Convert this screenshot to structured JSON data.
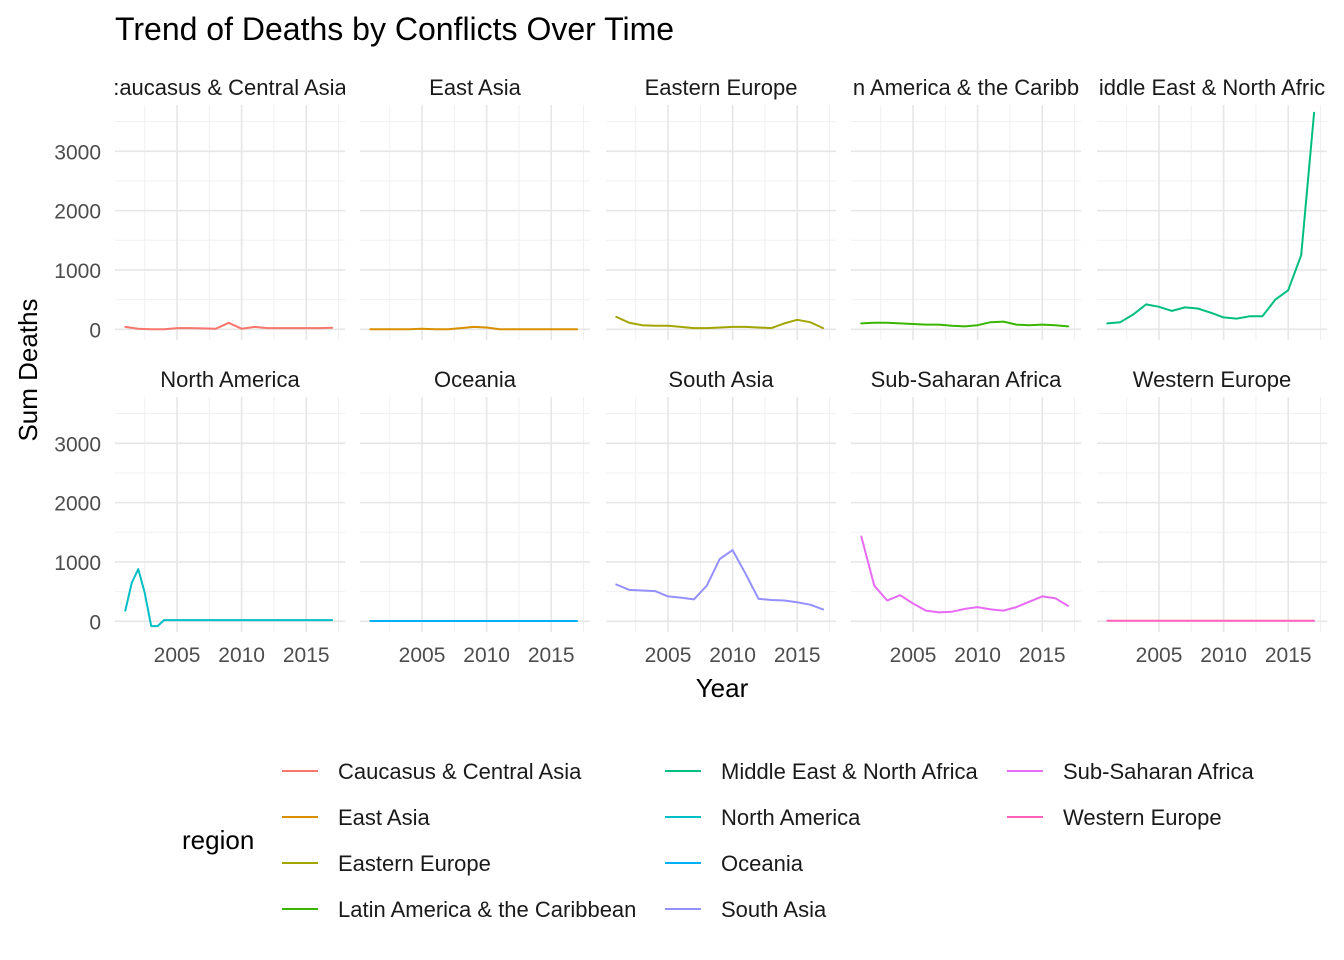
{
  "chart_data": {
    "type": "line",
    "title": "Trend of Deaths by Conflicts Over Time",
    "xlabel": "Year",
    "ylabel": "Sum Deaths",
    "xlim": [
      2000.2,
      2018.0
    ],
    "ylim": [
      -180,
      3780
    ],
    "x_ticks": [
      2005,
      2010,
      2015
    ],
    "y_ticks": [
      0,
      1000,
      2000,
      3000
    ],
    "grid": true,
    "legend": {
      "title": "region",
      "position": "bottom",
      "columns": 3
    },
    "panels": [
      {
        "label": "Caucasus & Central Asia",
        "display_label": ":aucasus & Central Asia",
        "color": "#F8766D",
        "x": [
          2001,
          2002,
          2003,
          2004,
          2005,
          2006,
          2007,
          2008,
          2008.5,
          2009,
          2009.5,
          2010,
          2011,
          2012,
          2013,
          2014,
          2015,
          2016,
          2017
        ],
        "y": [
          40,
          10,
          0,
          0,
          20,
          20,
          15,
          10,
          60,
          110,
          60,
          10,
          40,
          20,
          20,
          20,
          20,
          20,
          25
        ]
      },
      {
        "label": "East Asia",
        "display_label": "East Asia",
        "color": "#D89000",
        "x": [
          2001,
          2002,
          2003,
          2004,
          2005,
          2006,
          2007,
          2008,
          2009,
          2010,
          2011,
          2012,
          2013,
          2014,
          2015,
          2016,
          2017
        ],
        "y": [
          0,
          0,
          0,
          0,
          10,
          0,
          0,
          20,
          40,
          30,
          0,
          0,
          0,
          0,
          0,
          0,
          0
        ]
      },
      {
        "label": "Eastern Europe",
        "display_label": "Eastern Europe",
        "color": "#A3A500",
        "x": [
          2001,
          2002,
          2003,
          2004,
          2005,
          2006,
          2007,
          2008,
          2009,
          2010,
          2011,
          2012,
          2013,
          2014,
          2015,
          2016,
          2017
        ],
        "y": [
          210,
          110,
          70,
          60,
          60,
          40,
          20,
          20,
          30,
          40,
          40,
          30,
          20,
          100,
          160,
          120,
          20
        ]
      },
      {
        "label": "Latin America & the Caribbean",
        "display_label": "n America & the Caribb",
        "color": "#39B600",
        "x": [
          2001,
          2002,
          2003,
          2004,
          2005,
          2006,
          2007,
          2008,
          2009,
          2010,
          2011,
          2012,
          2013,
          2014,
          2015,
          2016,
          2017
        ],
        "y": [
          100,
          110,
          110,
          100,
          90,
          80,
          80,
          60,
          50,
          70,
          120,
          130,
          80,
          70,
          80,
          70,
          50
        ]
      },
      {
        "label": "Middle East & North Africa",
        "display_label": "iddle East & North Afric",
        "color": "#00BF7D",
        "x": [
          2001,
          2002,
          2003,
          2004,
          2005,
          2006,
          2007,
          2008,
          2009,
          2010,
          2011,
          2012,
          2013,
          2014,
          2014.5,
          2015,
          2016,
          2017
        ],
        "y": [
          100,
          120,
          250,
          420,
          380,
          310,
          370,
          350,
          280,
          200,
          180,
          220,
          220,
          500,
          580,
          660,
          1250,
          3650
        ]
      },
      {
        "label": "North America",
        "display_label": "North America",
        "color": "#00BFC4",
        "x": [
          2001,
          2001.5,
          2002,
          2002.5,
          2003,
          2003.5,
          2004,
          2005,
          2006,
          2007,
          2008,
          2009,
          2010,
          2011,
          2012,
          2013,
          2014,
          2015,
          2016,
          2017
        ],
        "y": [
          180,
          650,
          880,
          480,
          -80,
          -80,
          20,
          20,
          20,
          20,
          20,
          20,
          20,
          20,
          20,
          20,
          20,
          20,
          20,
          20
        ]
      },
      {
        "label": "Oceania",
        "display_label": "Oceania",
        "color": "#00B0F6",
        "x": [
          2001,
          2017
        ],
        "y": [
          5,
          5
        ]
      },
      {
        "label": "South Asia",
        "display_label": "South Asia",
        "color": "#9590FF",
        "x": [
          2001,
          2002,
          2003,
          2004,
          2005,
          2006,
          2007,
          2008,
          2009,
          2010,
          2011,
          2012,
          2013,
          2014,
          2015,
          2016,
          2017
        ],
        "y": [
          620,
          530,
          520,
          510,
          420,
          400,
          370,
          600,
          1050,
          1200,
          800,
          380,
          360,
          350,
          320,
          280,
          200
        ]
      },
      {
        "label": "Sub-Saharan Africa",
        "display_label": "Sub-Saharan Africa",
        "color": "#E76BF3",
        "x": [
          2001,
          2002,
          2003,
          2004,
          2005,
          2006,
          2007,
          2008,
          2009,
          2010,
          2011,
          2012,
          2013,
          2014,
          2015,
          2016,
          2017
        ],
        "y": [
          1430,
          600,
          350,
          440,
          300,
          180,
          150,
          160,
          210,
          240,
          200,
          180,
          240,
          330,
          420,
          390,
          260
        ]
      },
      {
        "label": "Western Europe",
        "display_label": "Western Europe",
        "color": "#FF62BC",
        "x": [
          2001,
          2017
        ],
        "y": [
          10,
          10
        ]
      }
    ]
  }
}
